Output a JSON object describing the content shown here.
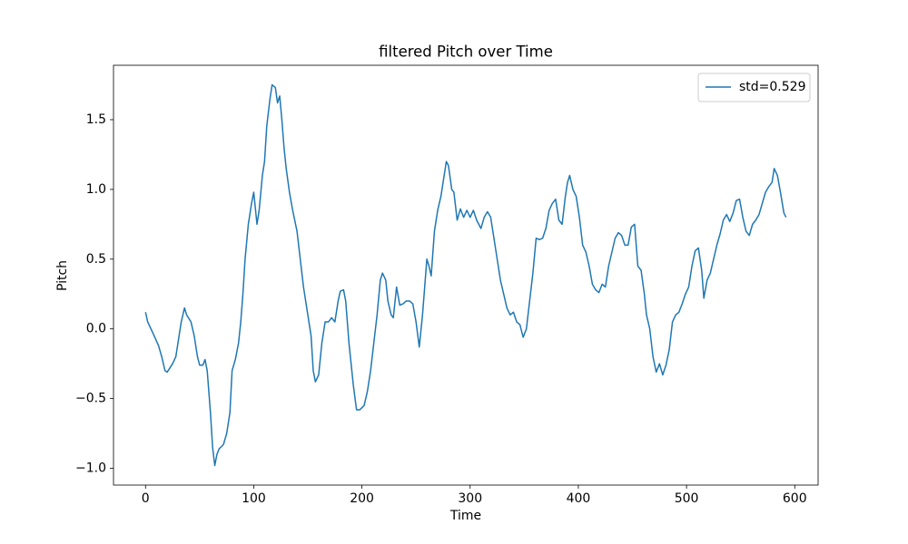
{
  "chart_data": {
    "type": "line",
    "title": "filtered Pitch over Time",
    "xlabel": "Time",
    "ylabel": "Pitch",
    "xlim": [
      -29.6,
      621.6
    ],
    "ylim": [
      -1.12,
      1.89
    ],
    "xticks": [
      0,
      100,
      200,
      300,
      400,
      500,
      600
    ],
    "yticks": [
      {
        "value": -1.0,
        "label": "−1.0"
      },
      {
        "value": -0.5,
        "label": "−0.5"
      },
      {
        "value": 0.0,
        "label": "0.0"
      },
      {
        "value": 0.5,
        "label": "0.5"
      },
      {
        "value": 1.0,
        "label": "1.0"
      },
      {
        "value": 1.5,
        "label": "1.5"
      }
    ],
    "grid": false,
    "legend": "upper right",
    "x": [
      0,
      2,
      5,
      8,
      12,
      15,
      18,
      20,
      25,
      28,
      30,
      33,
      36,
      38,
      42,
      45,
      48,
      50,
      53,
      55,
      57,
      60,
      62,
      64,
      66,
      68,
      72,
      75,
      78,
      80,
      83,
      86,
      88,
      90,
      92,
      95,
      98,
      100,
      103,
      105,
      108,
      110,
      112,
      115,
      117,
      120,
      122,
      124,
      126,
      128,
      130,
      133,
      136,
      140,
      143,
      146,
      148,
      150,
      153,
      155,
      157,
      160,
      163,
      166,
      169,
      172,
      175,
      178,
      180,
      183,
      185,
      188,
      192,
      195,
      198,
      202,
      205,
      208,
      211,
      214,
      217,
      219,
      222,
      224,
      227,
      229,
      232,
      235,
      238,
      241,
      244,
      247,
      250,
      253,
      256,
      260,
      262,
      264,
      267,
      270,
      273,
      276,
      278,
      280,
      283,
      285,
      288,
      291,
      294,
      297,
      300,
      303,
      306,
      310,
      313,
      316,
      319,
      322,
      325,
      328,
      331,
      334,
      337,
      340,
      343,
      346,
      349,
      352,
      355,
      358,
      361,
      364,
      367,
      370,
      373,
      376,
      379,
      382,
      385,
      388,
      390,
      392,
      395,
      398,
      401,
      404,
      407,
      410,
      413,
      416,
      419,
      422,
      425,
      428,
      431,
      434,
      437,
      440,
      443,
      446,
      449,
      452,
      455,
      458,
      461,
      463,
      466,
      469,
      472,
      475,
      478,
      481,
      484,
      487,
      490,
      493,
      496,
      499,
      502,
      505,
      508,
      511,
      514,
      516,
      519,
      522,
      525,
      528,
      531,
      534,
      537,
      540,
      543,
      546,
      549,
      552,
      555,
      558,
      561,
      564,
      567,
      570,
      573,
      576,
      579,
      581,
      584,
      587,
      590,
      592
    ],
    "series": [
      {
        "name": "std=0.529",
        "color": "#1f77b4",
        "values": [
          0.12,
          0.05,
          0.0,
          -0.05,
          -0.12,
          -0.2,
          -0.3,
          -0.31,
          -0.25,
          -0.2,
          -0.1,
          0.05,
          0.15,
          0.1,
          0.05,
          -0.05,
          -0.2,
          -0.26,
          -0.26,
          -0.22,
          -0.3,
          -0.6,
          -0.85,
          -0.98,
          -0.9,
          -0.86,
          -0.83,
          -0.75,
          -0.6,
          -0.3,
          -0.22,
          -0.1,
          0.05,
          0.25,
          0.5,
          0.75,
          0.9,
          0.98,
          0.75,
          0.85,
          1.1,
          1.2,
          1.45,
          1.65,
          1.75,
          1.73,
          1.62,
          1.67,
          1.5,
          1.3,
          1.15,
          0.98,
          0.85,
          0.7,
          0.5,
          0.3,
          0.2,
          0.1,
          -0.05,
          -0.3,
          -0.38,
          -0.33,
          -0.1,
          0.05,
          0.05,
          0.08,
          0.05,
          0.2,
          0.27,
          0.28,
          0.2,
          -0.1,
          -0.4,
          -0.58,
          -0.58,
          -0.55,
          -0.45,
          -0.3,
          -0.1,
          0.1,
          0.35,
          0.4,
          0.35,
          0.2,
          0.1,
          0.08,
          0.3,
          0.17,
          0.18,
          0.2,
          0.2,
          0.18,
          0.05,
          -0.13,
          0.1,
          0.5,
          0.45,
          0.38,
          0.7,
          0.85,
          0.95,
          1.1,
          1.2,
          1.17,
          1.0,
          0.98,
          0.78,
          0.86,
          0.8,
          0.85,
          0.8,
          0.85,
          0.78,
          0.72,
          0.8,
          0.84,
          0.8,
          0.65,
          0.5,
          0.35,
          0.25,
          0.15,
          0.1,
          0.12,
          0.05,
          0.03,
          -0.06,
          0.0,
          0.2,
          0.4,
          0.65,
          0.64,
          0.65,
          0.72,
          0.85,
          0.9,
          0.93,
          0.78,
          0.75,
          0.95,
          1.05,
          1.1,
          1.0,
          0.95,
          0.8,
          0.6,
          0.55,
          0.45,
          0.32,
          0.28,
          0.26,
          0.32,
          0.3,
          0.45,
          0.55,
          0.65,
          0.69,
          0.67,
          0.6,
          0.6,
          0.73,
          0.75,
          0.45,
          0.42,
          0.25,
          0.1,
          0.0,
          -0.2,
          -0.31,
          -0.25,
          -0.33,
          -0.26,
          -0.15,
          0.05,
          0.1,
          0.12,
          0.18,
          0.25,
          0.3,
          0.45,
          0.56,
          0.58,
          0.42,
          0.22,
          0.35,
          0.4,
          0.5,
          0.6,
          0.68,
          0.78,
          0.82,
          0.77,
          0.83,
          0.92,
          0.93,
          0.8,
          0.7,
          0.67,
          0.75,
          0.78,
          0.82,
          0.9,
          0.98,
          1.02,
          1.05,
          1.15,
          1.1,
          0.97,
          0.83,
          0.8
        ]
      }
    ]
  }
}
